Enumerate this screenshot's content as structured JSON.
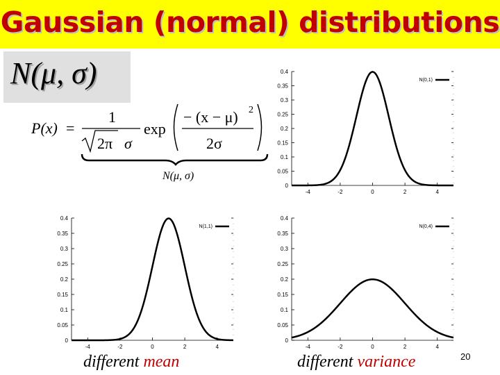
{
  "slide": {
    "title": "Gaussian (normal) distributions",
    "notation": "N(μ, σ)",
    "brace_label": "N(μ, σ)",
    "formula": {
      "lhs": "P(x)",
      "equals": "=",
      "numerator": "1",
      "sqrt_content": "2π",
      "sigma": "σ",
      "exp": "exp",
      "inner_num": "− (x − μ)",
      "power": "2",
      "inner_den": "2σ"
    },
    "captions": [
      {
        "black": "different ",
        "red": "mean"
      },
      {
        "black": "different ",
        "red": "variance"
      }
    ],
    "page_number": "20",
    "colors": {
      "title_bg": "#ffff00",
      "title_text": "#c00000",
      "accent": "#c00000"
    }
  },
  "chart_data": [
    {
      "type": "line",
      "legend": "N(0,1)",
      "mean": 0,
      "sd": 1,
      "xlim": [
        -5,
        5
      ],
      "ylim": [
        0,
        0.4
      ],
      "xticks": [
        "-4",
        "-2",
        "0",
        "2",
        "4"
      ],
      "yticks": [
        "0",
        "0.05",
        "0.1",
        "0.15",
        "0.2",
        "0.25",
        "0.3",
        "0.35",
        "0.4"
      ]
    },
    {
      "type": "line",
      "legend": "N(1,1)",
      "mean": 1,
      "sd": 1,
      "xlim": [
        -5,
        5
      ],
      "ylim": [
        0,
        0.4
      ],
      "xticks": [
        "-4",
        "-2",
        "0",
        "2",
        "4"
      ],
      "yticks": [
        "0",
        "0.05",
        "0.1",
        "0.15",
        "0.2",
        "0.25",
        "0.3",
        "0.35",
        "0.4"
      ]
    },
    {
      "type": "line",
      "legend": "N(0,4)",
      "mean": 0,
      "sd": 2,
      "xlim": [
        -5,
        5
      ],
      "ylim": [
        0,
        0.4
      ],
      "xticks": [
        "-4",
        "-2",
        "0",
        "2",
        "4"
      ],
      "yticks": [
        "0",
        "0.05",
        "0.1",
        "0.15",
        "0.2",
        "0.25",
        "0.3",
        "0.35",
        "0.4"
      ]
    }
  ]
}
